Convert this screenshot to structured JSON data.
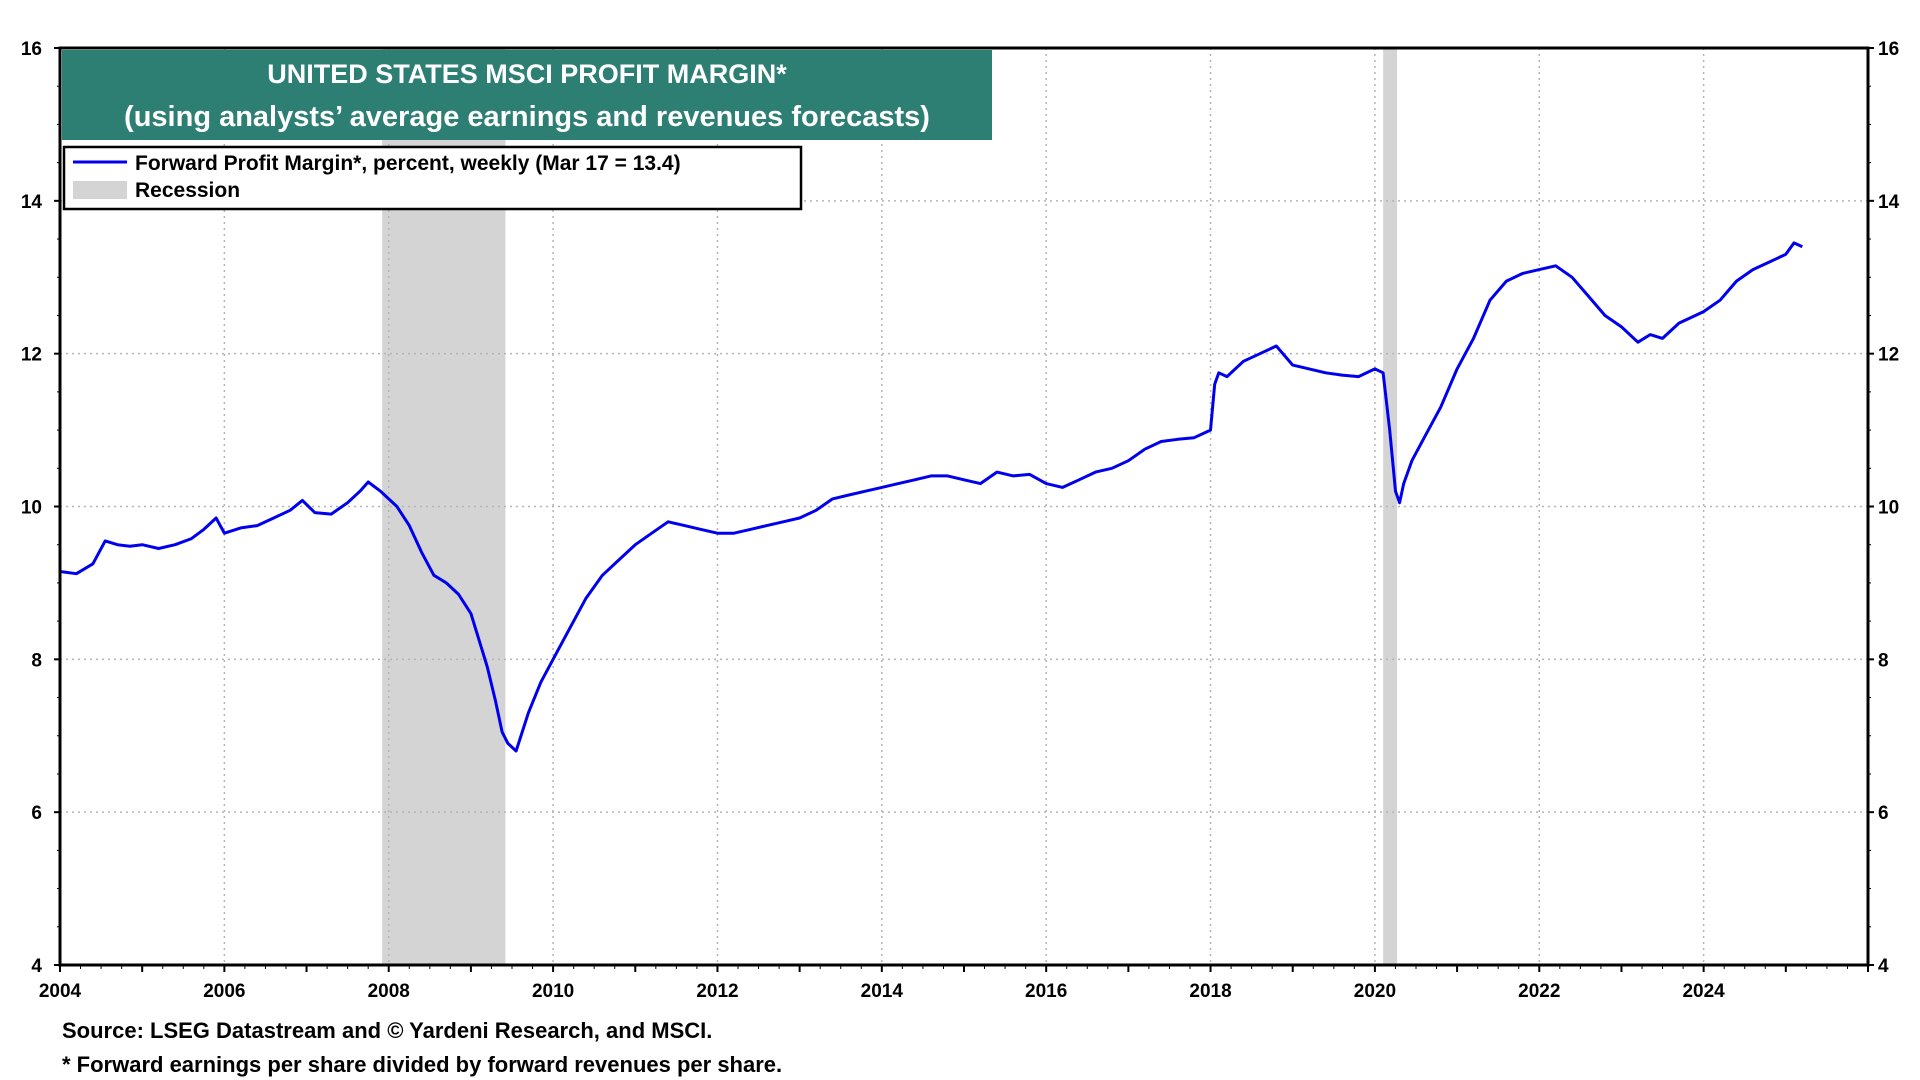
{
  "chart_data": {
    "type": "line",
    "title": "UNITED STATES MSCI PROFIT MARGIN*",
    "subtitle": "(using analysts’ average earnings and revenues forecasts)",
    "ylim": [
      4,
      16
    ],
    "y_ticks": [
      "4",
      "6",
      "8",
      "10",
      "12",
      "14",
      "16"
    ],
    "xlim": [
      2004.0,
      2026.0
    ],
    "x_ticks": [
      "2004",
      "2006",
      "2008",
      "2010",
      "2012",
      "2014",
      "2016",
      "2018",
      "2020",
      "2022",
      "2024"
    ],
    "grid": true,
    "legend_placement": "top-left",
    "series": [
      {
        "name": "Forward Profit Margin*, percent, weekly (Mar 17 = 13.4)",
        "color": "#0000ee",
        "x": [
          2004.0,
          2004.2,
          2004.4,
          2004.55,
          2004.7,
          2004.85,
          2005.0,
          2005.2,
          2005.4,
          2005.6,
          2005.75,
          2005.9,
          2006.0,
          2006.2,
          2006.4,
          2006.6,
          2006.8,
          2006.95,
          2007.1,
          2007.3,
          2007.5,
          2007.65,
          2007.75,
          2007.9,
          2008.1,
          2008.25,
          2008.4,
          2008.55,
          2008.7,
          2008.85,
          2009.0,
          2009.1,
          2009.2,
          2009.3,
          2009.38,
          2009.45,
          2009.55,
          2009.7,
          2009.85,
          2010.0,
          2010.2,
          2010.4,
          2010.6,
          2010.8,
          2011.0,
          2011.2,
          2011.4,
          2011.6,
          2011.8,
          2012.0,
          2012.2,
          2012.4,
          2012.6,
          2012.8,
          2013.0,
          2013.2,
          2013.4,
          2013.6,
          2013.8,
          2014.0,
          2014.2,
          2014.4,
          2014.6,
          2014.8,
          2015.0,
          2015.2,
          2015.4,
          2015.6,
          2015.8,
          2016.0,
          2016.2,
          2016.4,
          2016.6,
          2016.8,
          2017.0,
          2017.2,
          2017.4,
          2017.6,
          2017.8,
          2018.0,
          2018.05,
          2018.1,
          2018.2,
          2018.4,
          2018.6,
          2018.8,
          2019.0,
          2019.2,
          2019.4,
          2019.6,
          2019.8,
          2020.0,
          2020.1,
          2020.18,
          2020.25,
          2020.3,
          2020.35,
          2020.45,
          2020.6,
          2020.8,
          2021.0,
          2021.2,
          2021.4,
          2021.6,
          2021.8,
          2022.0,
          2022.2,
          2022.4,
          2022.6,
          2022.8,
          2023.0,
          2023.2,
          2023.35,
          2023.5,
          2023.7,
          2023.9,
          2024.0,
          2024.2,
          2024.4,
          2024.6,
          2024.8,
          2025.0,
          2025.1,
          2025.2
        ],
        "values": [
          9.15,
          9.12,
          9.25,
          9.55,
          9.5,
          9.48,
          9.5,
          9.45,
          9.5,
          9.58,
          9.7,
          9.85,
          9.65,
          9.72,
          9.75,
          9.85,
          9.95,
          10.08,
          9.92,
          9.9,
          10.05,
          10.2,
          10.32,
          10.2,
          10.0,
          9.75,
          9.4,
          9.1,
          9.0,
          8.85,
          8.6,
          8.25,
          7.9,
          7.45,
          7.05,
          6.9,
          6.8,
          7.3,
          7.7,
          8.0,
          8.4,
          8.8,
          9.1,
          9.3,
          9.5,
          9.65,
          9.8,
          9.75,
          9.7,
          9.65,
          9.65,
          9.7,
          9.75,
          9.8,
          9.85,
          9.95,
          10.1,
          10.15,
          10.2,
          10.25,
          10.3,
          10.35,
          10.4,
          10.4,
          10.35,
          10.3,
          10.45,
          10.4,
          10.42,
          10.3,
          10.25,
          10.35,
          10.45,
          10.5,
          10.6,
          10.75,
          10.85,
          10.88,
          10.9,
          11.0,
          11.6,
          11.75,
          11.7,
          11.9,
          12.0,
          12.1,
          11.85,
          11.8,
          11.75,
          11.72,
          11.7,
          11.8,
          11.75,
          11.0,
          10.2,
          10.05,
          10.3,
          10.6,
          10.9,
          11.3,
          11.8,
          12.2,
          12.7,
          12.95,
          13.05,
          13.1,
          13.15,
          13.0,
          12.75,
          12.5,
          12.35,
          12.15,
          12.25,
          12.2,
          12.4,
          12.5,
          12.55,
          12.7,
          12.95,
          13.1,
          13.2,
          13.3,
          13.45,
          13.4
        ]
      }
    ],
    "recessions": [
      {
        "name": "Recession",
        "start": 2007.92,
        "end": 2009.42,
        "color": "#d4d4d4"
      },
      {
        "start": 2020.1,
        "end": 2020.27,
        "color": "#d4d4d4"
      }
    ],
    "colors": {
      "title_bg": "#2d7f74",
      "title_text": "#ffffff",
      "line": "#0000ee",
      "recession": "#d4d4d4",
      "grid": "#b4b4b4"
    },
    "legend": {
      "line_label": "Forward Profit Margin*, percent, weekly (Mar 17 = 13.4)",
      "recession_label": "Recession"
    }
  },
  "footer": {
    "source": "Source: LSEG Datastream and © Yardeni Research, and MSCI.",
    "footnote": "* Forward earnings per share divided by forward revenues per share."
  }
}
